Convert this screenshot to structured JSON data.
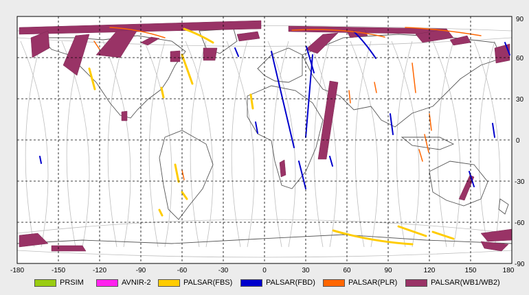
{
  "map": {
    "x_ticks": [
      "-180",
      "-150",
      "-120",
      "-90",
      "-60",
      "-30",
      "0",
      "30",
      "60",
      "90",
      "120",
      "150",
      "180"
    ],
    "y_ticks": [
      "90",
      "60",
      "30",
      "0",
      "-30",
      "-60",
      "-90"
    ],
    "gridlines": "dashed",
    "projection": "equirectangular"
  },
  "legend": [
    {
      "label": "PRSIM",
      "color": "#99cc11"
    },
    {
      "label": "AVNIR-2",
      "color": "#ff22ee"
    },
    {
      "label": "PALSAR(FBS)",
      "color": "#ffcc00"
    },
    {
      "label": "PALSAR(FBD)",
      "color": "#0000cc"
    },
    {
      "label": "PALSAR(PLR)",
      "color": "#ff6600"
    },
    {
      "label": "PALSAR(WB1/WB2)",
      "color": "#993366"
    }
  ]
}
